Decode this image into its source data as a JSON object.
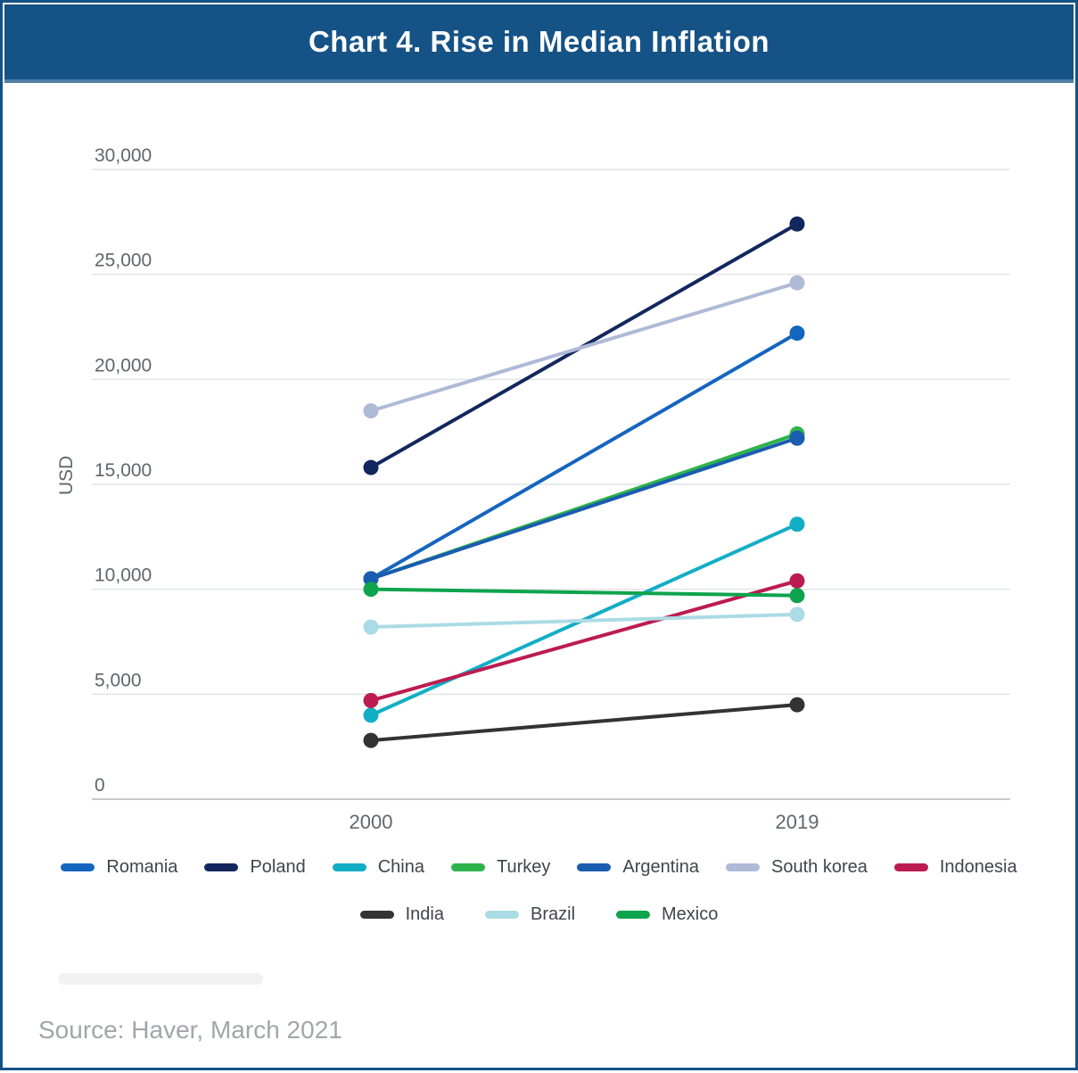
{
  "header": {
    "title": "Chart 4. Rise in Median Inflation"
  },
  "footer": {
    "source": "Source: Haver, March 2021"
  },
  "chart_data": {
    "type": "line",
    "title": "Chart 4. Rise in Median Inflation",
    "subtitle": "",
    "xlabel": "",
    "ylabel": "USD",
    "categories": [
      "2000",
      "2019"
    ],
    "ylim": [
      0,
      30000
    ],
    "y_ticks": [
      0,
      5000,
      10000,
      15000,
      20000,
      25000,
      30000
    ],
    "grid": true,
    "legend_position": "bottom",
    "series": [
      {
        "name": "Romania",
        "color": "#1565c0",
        "values": [
          10500,
          22200
        ]
      },
      {
        "name": "Poland",
        "color": "#12275d",
        "values": [
          15800,
          27400
        ]
      },
      {
        "name": "China",
        "color": "#12aec5",
        "values": [
          4000,
          13100
        ]
      },
      {
        "name": "Turkey",
        "color": "#2eb34a",
        "values": [
          10500,
          17400
        ]
      },
      {
        "name": "Argentina",
        "color": "#1a5cb0",
        "values": [
          10500,
          17200
        ]
      },
      {
        "name": "South korea",
        "color": "#aebad6",
        "values": [
          18500,
          24600
        ]
      },
      {
        "name": "Indonesia",
        "color": "#bc1b52",
        "values": [
          4700,
          10400
        ]
      },
      {
        "name": "India",
        "color": "#333333",
        "values": [
          2800,
          4500
        ]
      },
      {
        "name": "Brazil",
        "color": "#abdbe4",
        "values": [
          8200,
          8800
        ]
      },
      {
        "name": "Mexico",
        "color": "#0ea44d",
        "values": [
          10000,
          9700
        ]
      }
    ],
    "legend_rows": [
      [
        "Romania",
        "Poland",
        "China",
        "Turkey",
        "Argentina",
        "South korea",
        "Indonesia"
      ],
      [
        "India",
        "Brazil",
        "Mexico"
      ]
    ]
  }
}
